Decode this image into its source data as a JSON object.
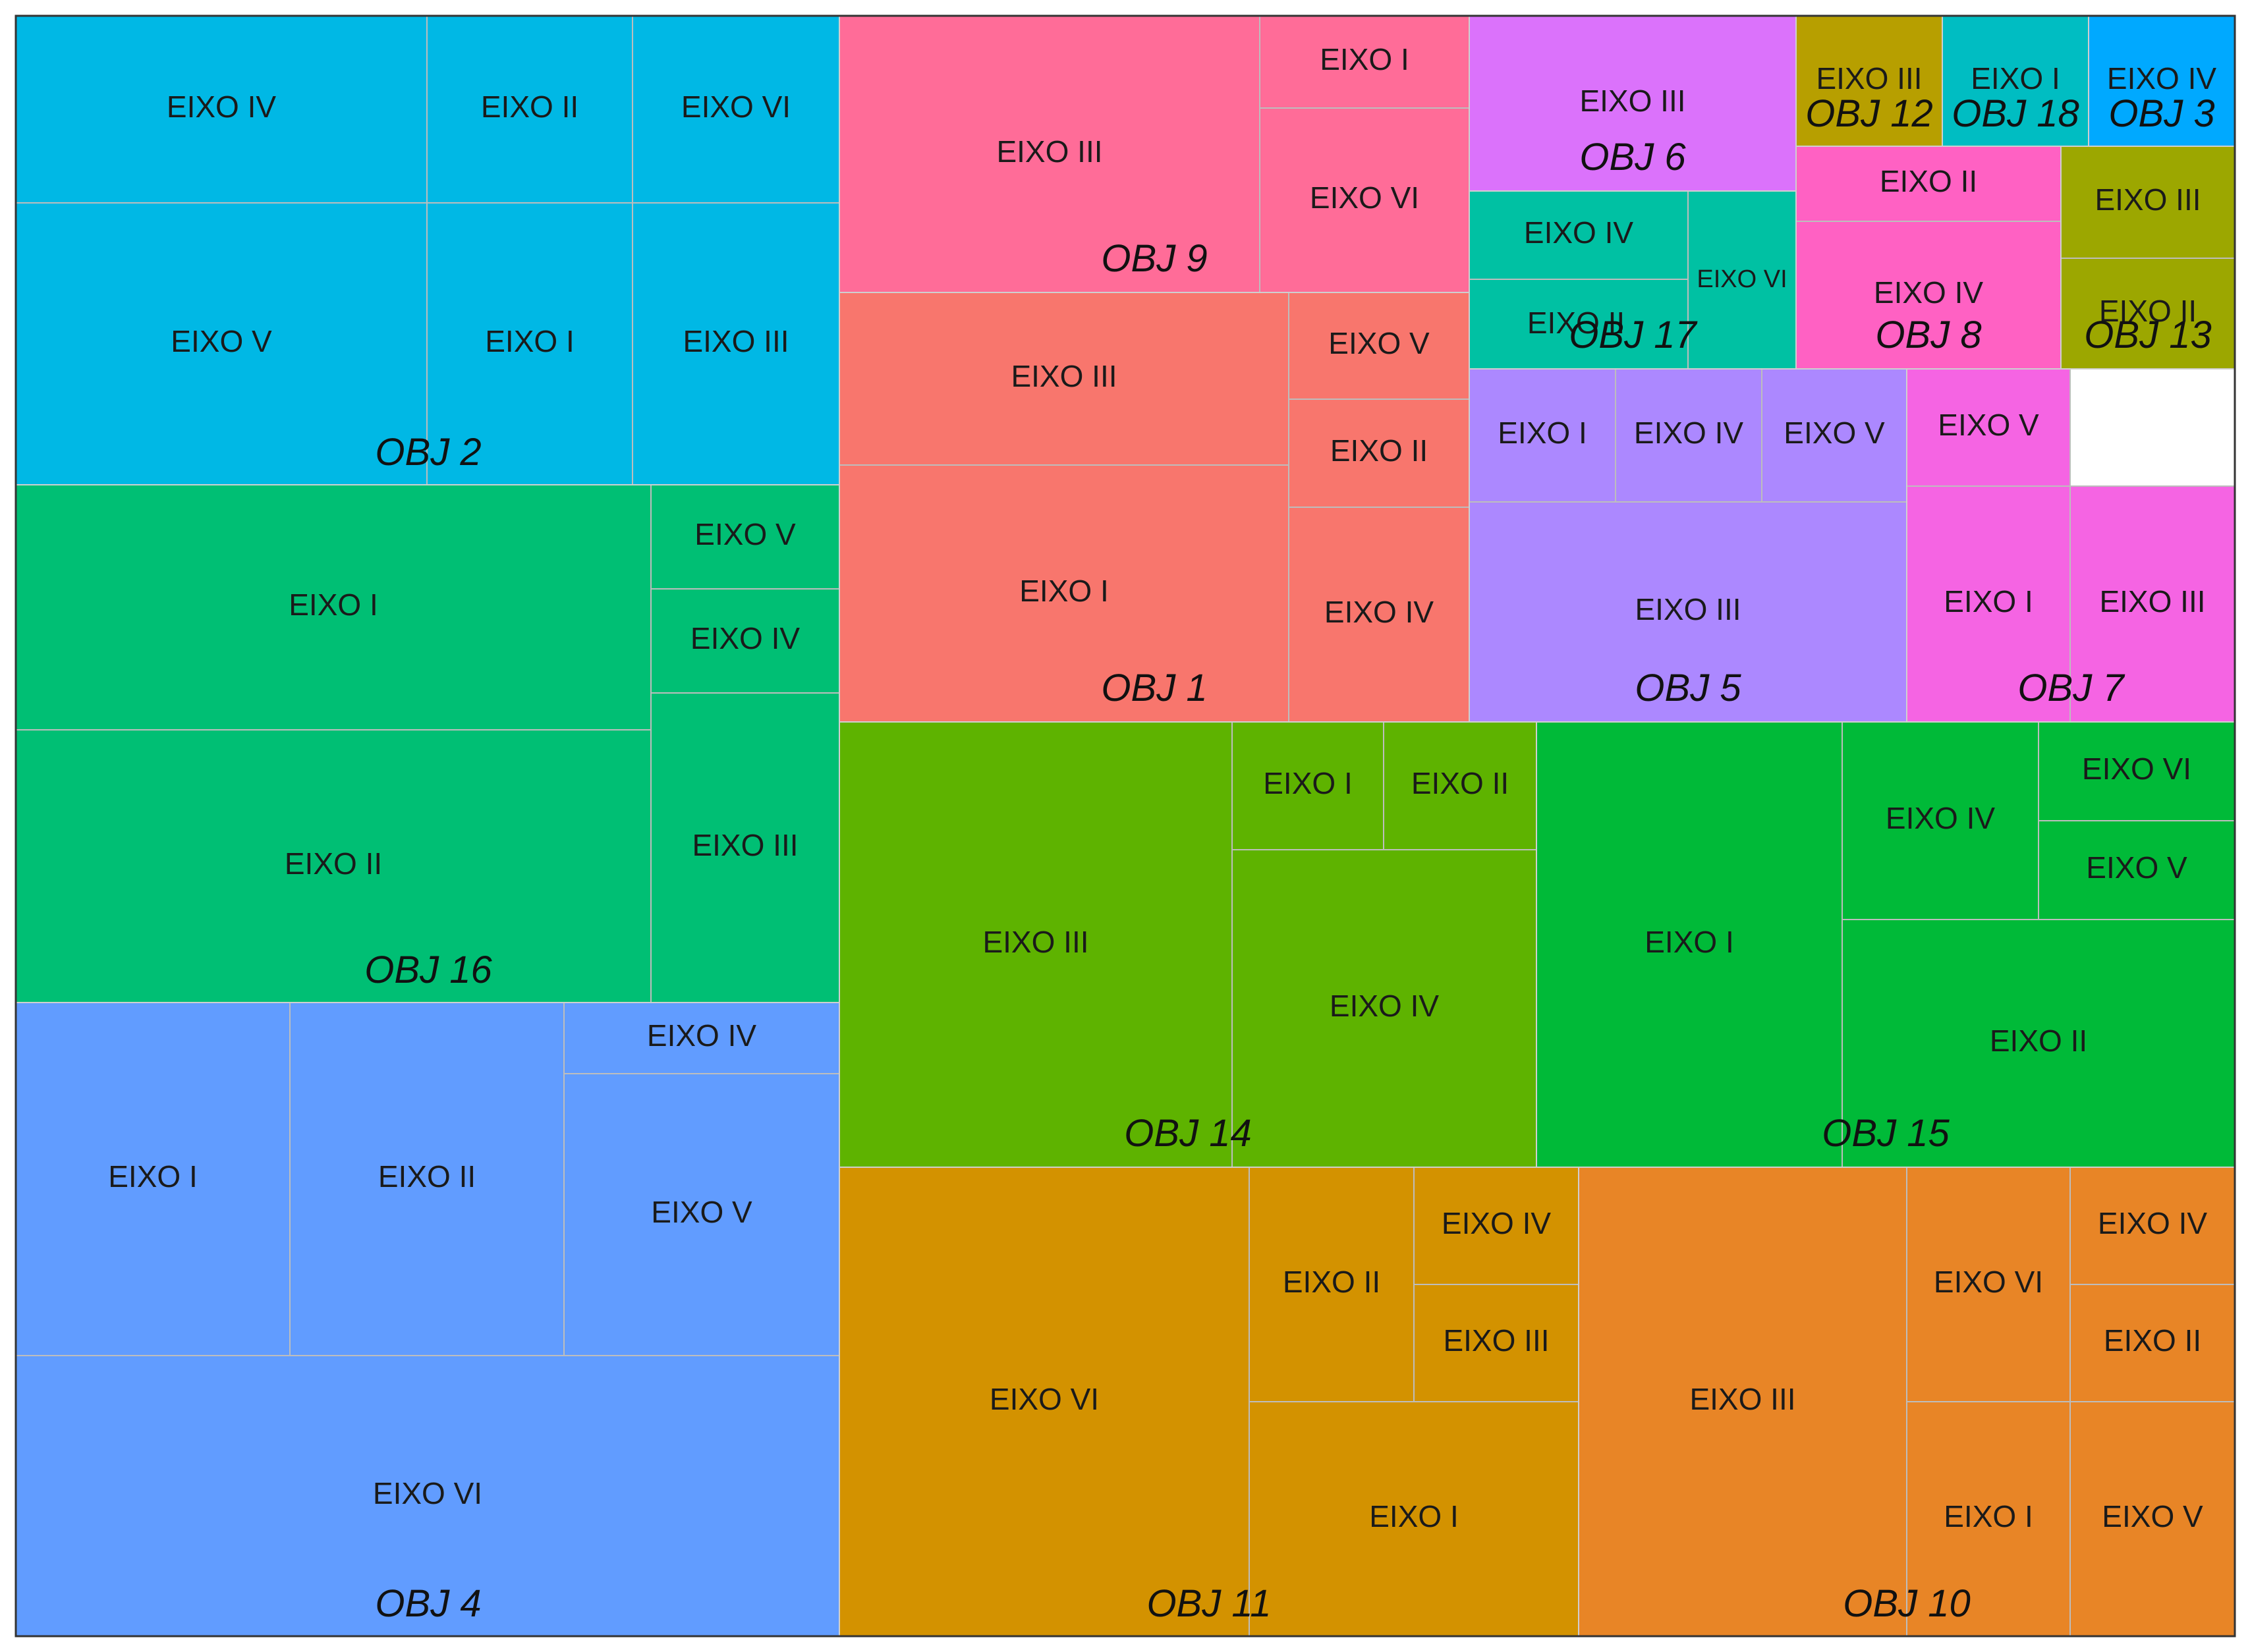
{
  "chart_data": {
    "type": "treemap",
    "groups": [
      {
        "name": "OBJ 2",
        "color": "#00B8E5",
        "leaves": [
          {
            "label": "EIXO IV",
            "value": 58.0
          },
          {
            "label": "EIXO II",
            "value": 29.0
          },
          {
            "label": "EIXO VI",
            "value": 29.0
          },
          {
            "label": "EIXO V",
            "value": 89.0
          },
          {
            "label": "EIXO I",
            "value": 45.0
          },
          {
            "label": "EIXO III",
            "value": 45.0
          }
        ]
      },
      {
        "name": "OBJ 16",
        "color": "#00BF74",
        "leaves": [
          {
            "label": "EIXO I",
            "value": 118.0
          },
          {
            "label": "EIXO II",
            "value": 132.0
          },
          {
            "label": "EIXO V",
            "value": 15.0
          },
          {
            "label": "EIXO IV",
            "value": 15.0
          },
          {
            "label": "EIXO III",
            "value": 43.0
          }
        ]
      },
      {
        "name": "OBJ 4",
        "color": "#619CFF",
        "leaves": [
          {
            "label": "EIXO I",
            "value": 74.0
          },
          {
            "label": "EIXO II",
            "value": 74.0
          },
          {
            "label": "EIXO IV",
            "value": 15.0
          },
          {
            "label": "EIXO V",
            "value": 59.0
          },
          {
            "label": "EIXO VI",
            "value": 177.0
          }
        ]
      },
      {
        "name": "OBJ 9",
        "color": "#FF6C98",
        "leaves": [
          {
            "label": "EIXO III",
            "value": 96.0
          },
          {
            "label": "EIXO I",
            "value": 14.0
          },
          {
            "label": "EIXO VI",
            "value": 29.0
          }
        ]
      },
      {
        "name": "OBJ 1",
        "color": "#F8766D",
        "leaves": [
          {
            "label": "EIXO III",
            "value": 60.0
          },
          {
            "label": "EIXO I",
            "value": 89.0
          },
          {
            "label": "EIXO V",
            "value": 15.0
          },
          {
            "label": "EIXO II",
            "value": 15.0
          },
          {
            "label": "EIXO IV",
            "value": 30.0
          }
        ]
      },
      {
        "name": "OBJ 6",
        "color": "#DB72FB",
        "leaves": [
          {
            "label": "EIXO III",
            "value": 30.0
          }
        ]
      },
      {
        "name": "OBJ 17",
        "color": "#00C1A3",
        "leaves": [
          {
            "label": "EIXO IV",
            "value": 14.0
          },
          {
            "label": "EIXO II",
            "value": 14.0
          },
          {
            "label": "EIXO VI",
            "value": 14.0
          }
        ]
      },
      {
        "name": "OBJ 12",
        "color": "#B79F00",
        "leaves": [
          {
            "label": "EIXO III",
            "value": 14.0
          }
        ]
      },
      {
        "name": "OBJ 18",
        "color": "#00BDC2",
        "leaves": [
          {
            "label": "EIXO I",
            "value": 14.0
          }
        ]
      },
      {
        "name": "OBJ 3",
        "color": "#00A9FF",
        "leaves": [
          {
            "label": "EIXO IV",
            "value": 14.0
          }
        ]
      },
      {
        "name": "OBJ 8",
        "color": "#FF61C3",
        "leaves": [
          {
            "label": "EIXO II",
            "value": 15.0
          },
          {
            "label": "EIXO IV",
            "value": 29.0
          }
        ]
      },
      {
        "name": "OBJ 13",
        "color": "#9CA700",
        "leaves": [
          {
            "label": "EIXO III",
            "value": 15.0
          },
          {
            "label": "EIXO II",
            "value": 15.0
          }
        ]
      },
      {
        "name": "OBJ 5",
        "color": "#AC88FF",
        "leaves": [
          {
            "label": "EIXO I",
            "value": 15.0
          },
          {
            "label": "EIXO IV",
            "value": 15.0
          },
          {
            "label": "EIXO V",
            "value": 15.0
          },
          {
            "label": "EIXO III",
            "value": 46.0
          }
        ]
      },
      {
        "name": "OBJ 7",
        "color": "#F564E3",
        "leaves": [
          {
            "label": "EIXO V",
            "value": 15.0
          },
          {
            "label": "EIXO I",
            "value": 30.0
          },
          {
            "label": "EIXO III",
            "value": 30.0
          }
        ]
      },
      {
        "name": "OBJ 14",
        "color": "#5EB300",
        "leaves": [
          {
            "label": "EIXO III",
            "value": 120.0
          },
          {
            "label": "EIXO I",
            "value": 14.0
          },
          {
            "label": "EIXO II",
            "value": 14.0
          },
          {
            "label": "EIXO IV",
            "value": 60.0
          }
        ]
      },
      {
        "name": "OBJ 15",
        "color": "#00BA38",
        "leaves": [
          {
            "label": "EIXO I",
            "value": 93.0
          },
          {
            "label": "EIXO IV",
            "value": 29.0
          },
          {
            "label": "EIXO VI",
            "value": 15.0
          },
          {
            "label": "EIXO V",
            "value": 15.0
          },
          {
            "label": "EIXO II",
            "value": 74.0
          }
        ]
      },
      {
        "name": "OBJ 11",
        "color": "#D39200",
        "leaves": [
          {
            "label": "EIXO VI",
            "value": 132.0
          },
          {
            "label": "EIXO II",
            "value": 30.0
          },
          {
            "label": "EIXO IV",
            "value": 15.0
          },
          {
            "label": "EIXO III",
            "value": 15.0
          },
          {
            "label": "EIXO I",
            "value": 59.0
          }
        ]
      },
      {
        "name": "OBJ 10",
        "color": "#E88526",
        "leaves": [
          {
            "label": "EIXO III",
            "value": 105.0
          },
          {
            "label": "EIXO VI",
            "value": 30.0
          },
          {
            "label": "EIXO IV",
            "value": 15.0
          },
          {
            "label": "EIXO II",
            "value": 15.0
          },
          {
            "label": "EIXO I",
            "value": 30.0
          },
          {
            "label": "EIXO V",
            "value": 30.0
          }
        ]
      }
    ]
  }
}
